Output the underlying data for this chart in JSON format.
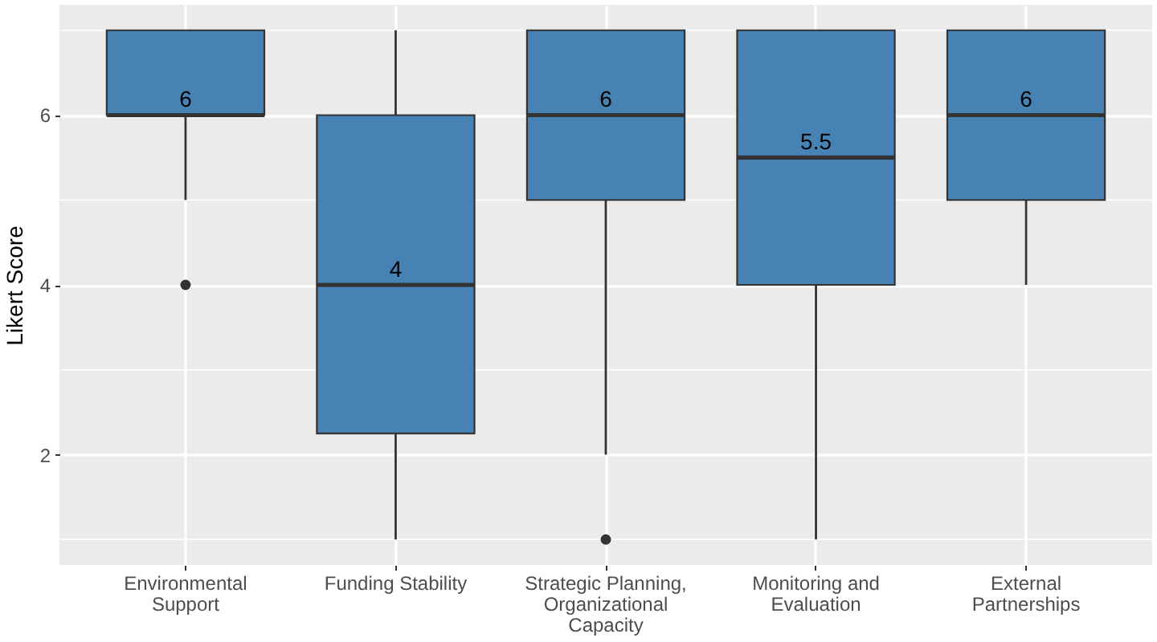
{
  "chart_data": {
    "type": "box",
    "ylabel": "Likert Score",
    "categories": [
      "Environmental Support",
      "Funding Stability",
      "Strategic Planning, Organizational Capacity",
      "Monitoring and Evaluation",
      "External Partnerships"
    ],
    "boxes": [
      {
        "low": 5,
        "q1": 6,
        "median": 6,
        "q3": 7,
        "high": 7,
        "outliers": [
          4
        ]
      },
      {
        "low": 1,
        "q1": 2.25,
        "median": 4,
        "q3": 6,
        "high": 7
      },
      {
        "low": 2,
        "q1": 5,
        "median": 6,
        "q3": 7,
        "high": 7,
        "outliers": [
          1
        ]
      },
      {
        "low": 1,
        "q1": 4,
        "median": 5.5,
        "q3": 7,
        "high": 7
      },
      {
        "low": 4,
        "q1": 5,
        "median": 6,
        "q3": 7,
        "high": 7
      }
    ],
    "annotations": [
      {
        "text": "6",
        "x": "Environmental Support",
        "y": 6
      },
      {
        "text": "4",
        "x": "Funding Stability",
        "y": 4
      },
      {
        "text": "6",
        "x": "Strategic Planning, Organizational Capacity",
        "y": 6
      },
      {
        "text": "5.5",
        "x": "Monitoring and Evaluation",
        "y": 5.5
      },
      {
        "text": "6",
        "x": "External Partnerships",
        "y": 6
      }
    ],
    "color": "#4682b4",
    "ylim": [
      0.7,
      7.3
    ],
    "yticks": [
      2,
      4,
      6
    ],
    "grid": true
  }
}
